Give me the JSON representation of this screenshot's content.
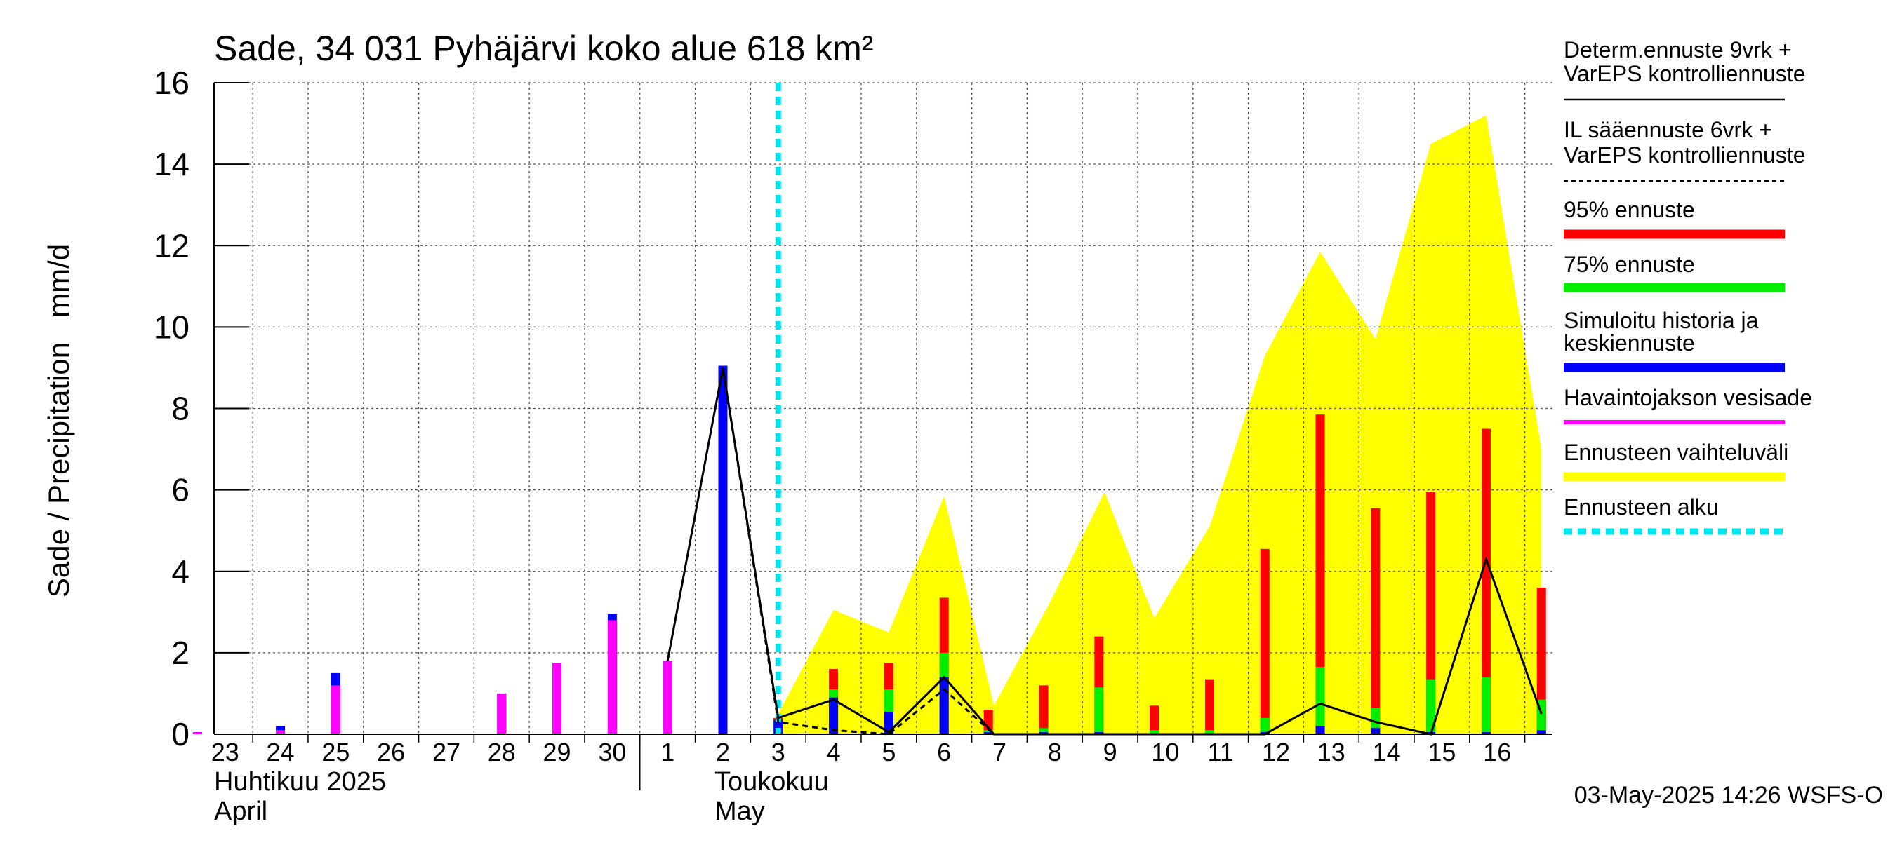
{
  "chart_data": {
    "type": "bar",
    "title": "Sade, 34 031 Pyhäjärvi koko alue 618 km²",
    "ylabel": "Sade / Precipitation   mm/d",
    "ylim": [
      0,
      16
    ],
    "yticks": [
      0,
      2,
      4,
      6,
      8,
      10,
      12,
      14,
      16
    ],
    "grid": true,
    "legend_position": "right",
    "x_day_labels": [
      "23",
      "24",
      "25",
      "26",
      "27",
      "28",
      "29",
      "30",
      "1",
      "2",
      "3",
      "4",
      "5",
      "6",
      "7",
      "8",
      "9",
      "10",
      "11",
      "12",
      "13",
      "14",
      "15",
      "16"
    ],
    "month_labels": [
      {
        "line1": "Huhtikuu  2025",
        "line2": "April"
      },
      {
        "line1": "Toukokuu",
        "line2": "May"
      }
    ],
    "timestamp": "03-May-2025 14:26 WSFS-O",
    "forecast_start_day": "3",
    "legend": [
      {
        "label": "Determ.ennuste 9vrk  +\nVarEPS kontrolliennuste",
        "color": "#000000",
        "style": "solid"
      },
      {
        "label": "IL sääennuste 6vrk  +\n  VarEPS kontrolliennuste",
        "color": "#000000",
        "style": "dashed"
      },
      {
        "label": "95% ennuste",
        "color": "#ff0000",
        "style": "thick"
      },
      {
        "label": "75% ennuste",
        "color": "#00ee00",
        "style": "thick"
      },
      {
        "label": "Simuloitu historia ja\nkeskiennuste",
        "color": "#0000ff",
        "style": "thick"
      },
      {
        "label": "Havaintojakson vesisade",
        "color": "#ff00ff",
        "style": "medium"
      },
      {
        "label": "Ennusteen vaihteluväli",
        "color": "#ffff00",
        "style": "thick"
      },
      {
        "label": "Ennusteen alku",
        "color": "#00e5ee",
        "style": "dotted"
      }
    ],
    "colors": {
      "p95": "#ff0000",
      "p75": "#00ee00",
      "mean": "#0000ff",
      "observed": "#ff00ff",
      "range": "#ffff00",
      "forecast_start": "#00e5ee"
    },
    "observed": [
      {
        "day": 22.5,
        "sim": 0.05,
        "obs": 0.05
      },
      {
        "day": 24,
        "sim": 0.2,
        "obs": 0.1
      },
      {
        "day": 25,
        "sim": 1.5,
        "obs": 1.2
      },
      {
        "day": 28,
        "sim": 1.0,
        "obs": 1.0
      },
      {
        "day": 29,
        "sim": 1.75,
        "obs": 1.75
      },
      {
        "day": 30,
        "sim": 2.95,
        "obs": 2.8
      },
      {
        "day": 31,
        "sim": 1.8,
        "obs": 1.8
      },
      {
        "day": 32,
        "sim": 9.05,
        "obs": 0
      }
    ],
    "forecast_bars": [
      {
        "day": 33,
        "p95": 0.4,
        "p75": 0.35,
        "mean": 0.35
      },
      {
        "day": 34,
        "p95": 1.6,
        "p75": 1.1,
        "mean": 0.9
      },
      {
        "day": 35,
        "p95": 1.75,
        "p75": 1.1,
        "mean": 0.55
      },
      {
        "day": 36,
        "p95": 3.35,
        "p75": 2.0,
        "mean": 1.4
      },
      {
        "day": 36.8,
        "p95": 0.6,
        "p75": 0.1,
        "mean": 0.05
      },
      {
        "day": 37.8,
        "p95": 1.2,
        "p75": 0.15,
        "mean": 0.05
      },
      {
        "day": 38.8,
        "p95": 2.4,
        "p75": 1.15,
        "mean": 0.05
      },
      {
        "day": 39.8,
        "p95": 0.7,
        "p75": 0.1,
        "mean": 0.02
      },
      {
        "day": 40.8,
        "p95": 1.35,
        "p75": 0.1,
        "mean": 0.02
      },
      {
        "day": 41.8,
        "p95": 4.55,
        "p75": 0.4,
        "mean": 0.05
      },
      {
        "day": 42.8,
        "p95": 7.85,
        "p75": 1.65,
        "mean": 0.2
      },
      {
        "day": 43.8,
        "p95": 5.55,
        "p75": 0.65,
        "mean": 0.15
      },
      {
        "day": 44.8,
        "p95": 5.95,
        "p75": 1.35,
        "mean": 0.05
      },
      {
        "day": 45.8,
        "p95": 7.5,
        "p75": 1.4,
        "mean": 0.05
      },
      {
        "day": 46.8,
        "p95": 3.6,
        "p75": 0.85,
        "mean": 0.1
      }
    ],
    "range_band": {
      "x": [
        33,
        34,
        35,
        36,
        36.9,
        37.9,
        38.9,
        39.8,
        40.8,
        41.8,
        42.8,
        43.8,
        44.8,
        45.8,
        46.8
      ],
      "upper": [
        0.5,
        3.05,
        2.5,
        5.85,
        0.7,
        3.2,
        5.95,
        2.85,
        5.1,
        9.3,
        11.85,
        9.7,
        14.5,
        15.2,
        7.0
      ]
    },
    "determ_line": {
      "x": [
        31,
        32,
        33,
        34,
        35,
        36,
        36.9,
        37.9,
        38.9,
        39.9,
        40.9,
        41.8,
        42.8,
        43.8,
        44.8,
        45.8,
        46.8
      ],
      "y": [
        1.8,
        9.0,
        0.4,
        0.85,
        0.05,
        1.4,
        0.0,
        0.0,
        0.0,
        0.0,
        0.0,
        0.0,
        0.75,
        0.3,
        0.0,
        4.3,
        0.5
      ]
    },
    "il_line": {
      "x": [
        32,
        33,
        34,
        35,
        36,
        36.9
      ],
      "y": [
        9.0,
        0.3,
        0.1,
        0.0,
        1.1,
        0.0
      ]
    }
  }
}
